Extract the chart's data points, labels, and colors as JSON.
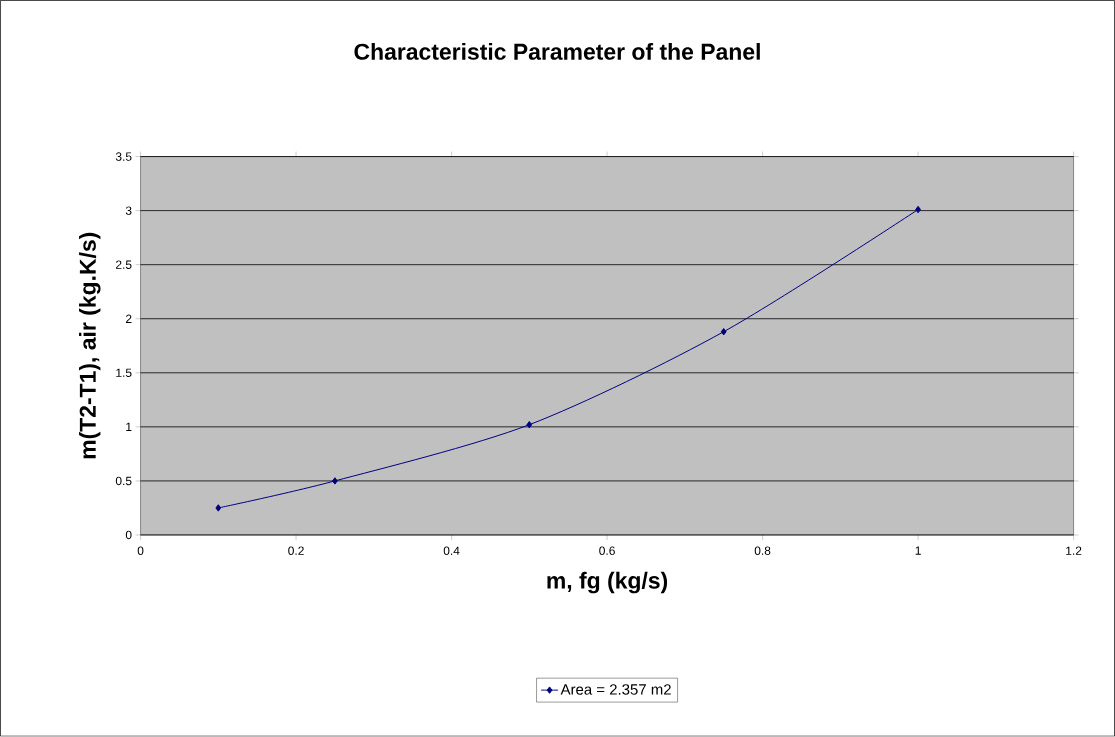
{
  "chart_data": {
    "type": "line",
    "title": "Characteristic Parameter of the Panel",
    "xlabel": "m, fg (kg/s)",
    "ylabel": "m(T2-T1), air (kg.K/s)",
    "x": [
      0.1,
      0.25,
      0.5,
      0.75,
      1.0
    ],
    "series": [
      {
        "name": "Area = 2.357 m2",
        "color": "#000080",
        "values": [
          0.25,
          0.5,
          1.02,
          1.88,
          3.01
        ]
      }
    ],
    "xlim": [
      0,
      1.2
    ],
    "ylim": [
      0,
      3.5
    ],
    "xticks": [
      0,
      0.2,
      0.4,
      0.6,
      0.8,
      1,
      1.2
    ],
    "yticks": [
      0,
      0.5,
      1,
      1.5,
      2,
      2.5,
      3,
      3.5
    ],
    "grid": "y",
    "legend": "bottom",
    "marker": "diamond",
    "line_style": "solid"
  }
}
